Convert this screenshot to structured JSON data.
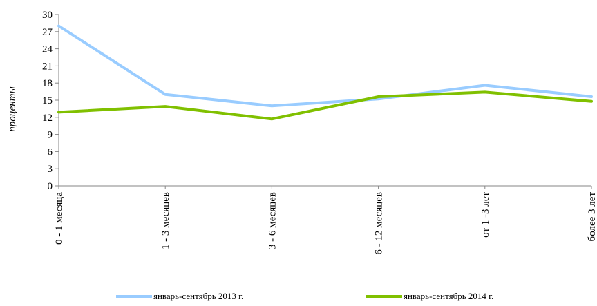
{
  "chart_data": {
    "type": "line",
    "categories": [
      "0 - 1 месяца",
      "1 - 3 месяцев",
      "3 - 6 месяцев",
      "6 - 12 месяцев",
      "от 1 -3 лет",
      "более 3 лет"
    ],
    "series": [
      {
        "name": "январь-сентябрь 2013 г.",
        "values": [
          28.0,
          16.0,
          14.0,
          15.2,
          17.6,
          15.6
        ],
        "color": "#99CCFF"
      },
      {
        "name": "январь-сентябрь 2014 г.",
        "values": [
          12.9,
          13.9,
          11.7,
          15.6,
          16.4,
          14.8
        ],
        "color": "#80C000"
      }
    ],
    "title": "",
    "xlabel": "",
    "ylabel": "проценты",
    "ylim": [
      0,
      30
    ],
    "yticks": [
      "0",
      "3",
      "6",
      "9",
      "12",
      "15",
      "18",
      "21",
      "24",
      "27",
      "30"
    ],
    "grid": false,
    "legend_position": "bottom"
  }
}
